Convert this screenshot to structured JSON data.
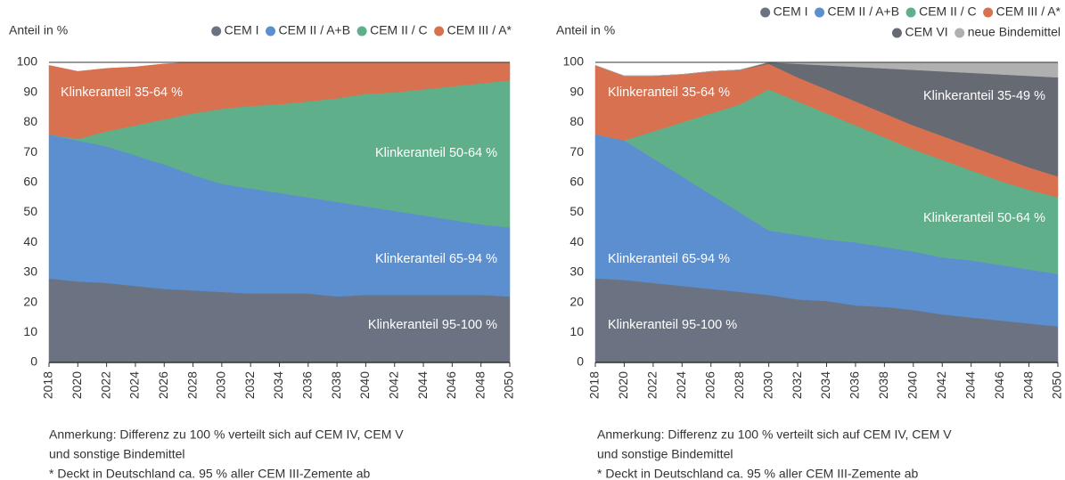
{
  "chart_data": [
    {
      "type": "stacked-area",
      "y_label": "Anteil in %",
      "x": [
        2018,
        2020,
        2022,
        2024,
        2026,
        2028,
        2030,
        2032,
        2034,
        2036,
        2038,
        2040,
        2042,
        2044,
        2046,
        2048,
        2050
      ],
      "xlim": [
        2018,
        2050
      ],
      "xticks": [
        2018,
        2020,
        2022,
        2024,
        2026,
        2028,
        2030,
        2032,
        2034,
        2036,
        2038,
        2040,
        2042,
        2044,
        2046,
        2048,
        2050
      ],
      "ylim": [
        0,
        100
      ],
      "yticks": [
        0,
        10,
        20,
        30,
        40,
        50,
        60,
        70,
        80,
        90,
        100
      ],
      "series": [
        {
          "name": "CEM I",
          "color": "#6b7282",
          "values": [
            28,
            27,
            26.5,
            25.5,
            24.5,
            24,
            23.5,
            23,
            23,
            23,
            22,
            22.5,
            22.5,
            22.5,
            22.5,
            22.5,
            22
          ]
        },
        {
          "name": "CEM II / A+B",
          "color": "#5b8fd0",
          "values": [
            48,
            47,
            45.5,
            43.5,
            41.5,
            38.5,
            36,
            35,
            33.5,
            32,
            31.5,
            29.5,
            28,
            26.5,
            25,
            23.5,
            23
          ]
        },
        {
          "name": "CEM II / C",
          "color": "#5fb08a",
          "values": [
            0,
            0.5,
            5,
            10,
            15,
            20.5,
            25,
            27.5,
            29.5,
            32,
            34.5,
            37.5,
            39.5,
            42,
            44.5,
            47,
            49
          ]
        },
        {
          "name": "CEM III / A*",
          "color": "#d77150",
          "values": [
            23,
            22.5,
            21,
            19.5,
            18.5,
            17,
            15.5,
            14.5,
            14,
            13,
            12,
            10.5,
            10,
            9,
            8,
            7,
            6
          ]
        }
      ],
      "annotations": [
        "Klinkeranteil 35-64 %",
        "Klinkeranteil 50-64 %",
        "Klinkeranteil 65-94 %",
        "Klinkeranteil 95-100 %"
      ],
      "notes": [
        "Anmerkung: Differenz zu 100 % verteilt sich auf CEM IV, CEM V",
        "und sonstige Bindemittel",
        "* Deckt in Deutschland ca. 95 % aller CEM III-Zemente ab"
      ]
    },
    {
      "type": "stacked-area",
      "y_label": "Anteil in %",
      "x": [
        2018,
        2020,
        2022,
        2024,
        2026,
        2028,
        2030,
        2032,
        2034,
        2036,
        2038,
        2040,
        2042,
        2044,
        2046,
        2048,
        2050
      ],
      "xlim": [
        2018,
        2050
      ],
      "xticks": [
        2018,
        2020,
        2022,
        2024,
        2026,
        2028,
        2030,
        2032,
        2034,
        2036,
        2038,
        2040,
        2042,
        2044,
        2046,
        2048,
        2050
      ],
      "ylim": [
        0,
        100
      ],
      "yticks": [
        0,
        10,
        20,
        30,
        40,
        50,
        60,
        70,
        80,
        90,
        100
      ],
      "series": [
        {
          "name": "CEM I",
          "color": "#6b7282",
          "values": [
            28,
            27.5,
            26.5,
            25.5,
            24.5,
            23.5,
            22.5,
            21,
            20.5,
            19,
            18.5,
            17.5,
            16,
            15,
            14,
            13,
            12
          ]
        },
        {
          "name": "CEM II / A+B",
          "color": "#5b8fd0",
          "values": [
            48,
            46.5,
            41.5,
            36.5,
            31.5,
            26.5,
            21.5,
            21.5,
            20.5,
            21,
            20,
            19.5,
            19,
            19,
            18.5,
            18,
            17.5
          ]
        },
        {
          "name": "CEM II / C",
          "color": "#5fb08a",
          "values": [
            0,
            0,
            9,
            18,
            27,
            36,
            47,
            44.5,
            42,
            39,
            36.5,
            34,
            32.5,
            30,
            28,
            26.5,
            25.5
          ]
        },
        {
          "name": "CEM III / A*",
          "color": "#d77150",
          "values": [
            23,
            21.5,
            18.5,
            16,
            14,
            11.5,
            8.5,
            8,
            8,
            8,
            8,
            8,
            8,
            8,
            8,
            7.5,
            7
          ]
        },
        {
          "name": "CEM VI",
          "color": "#666a73",
          "values": [
            0,
            0,
            0,
            0,
            0,
            0,
            0.5,
            4.5,
            8,
            11.5,
            15,
            18.5,
            21.5,
            24.5,
            27.5,
            30.5,
            33
          ]
        },
        {
          "name": "neue Bindemittel",
          "color": "#b0b0b0",
          "values": [
            0,
            0,
            0,
            0,
            0,
            0,
            0,
            0.5,
            1,
            1.5,
            2,
            2.5,
            3,
            3.5,
            4,
            4.5,
            5
          ]
        }
      ],
      "annotations": [
        "Klinkeranteil 35-64 %",
        "Klinkeranteil 35-49 %",
        "Klinkeranteil 50-64 %",
        "Klinkeranteil 65-94 %",
        "Klinkeranteil 95-100 %"
      ],
      "notes": [
        "Anmerkung: Differenz zu 100 % verteilt sich auf CEM IV, CEM V",
        "und sonstige Bindemittel",
        "* Deckt in Deutschland ca. 95 % aller CEM III-Zemente ab"
      ]
    }
  ]
}
